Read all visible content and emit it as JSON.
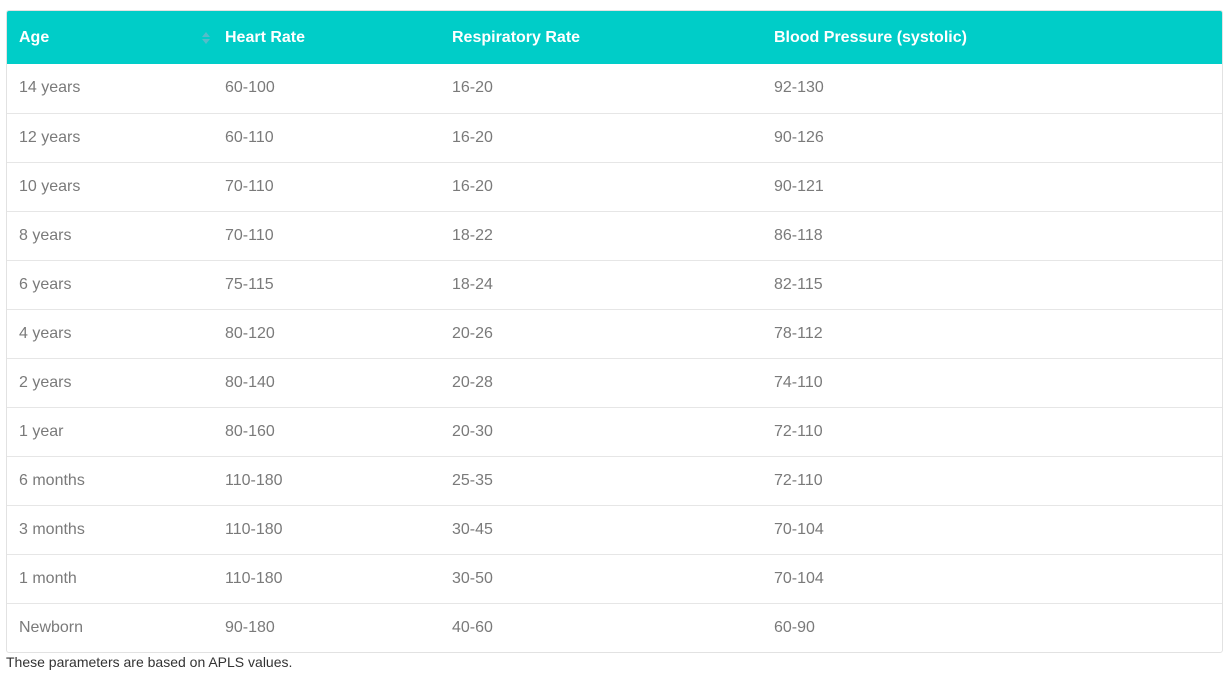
{
  "colors": {
    "header_bg": "#00cdc8",
    "header_text": "#ffffff",
    "cell_text": "#7a7a7a",
    "row_border": "#e6e6e6"
  },
  "table": {
    "headers": {
      "age": "Age",
      "heart_rate": "Heart Rate",
      "respiratory_rate": "Respiratory Rate",
      "blood_pressure": "Blood Pressure (systolic)"
    },
    "sort_icon": "sort-up-down-icon",
    "rows": [
      {
        "age": "14 years",
        "heart_rate": "60-100",
        "respiratory_rate": "16-20",
        "blood_pressure": "92-130"
      },
      {
        "age": "12 years",
        "heart_rate": "60-110",
        "respiratory_rate": "16-20",
        "blood_pressure": "90-126"
      },
      {
        "age": "10 years",
        "heart_rate": "70-110",
        "respiratory_rate": "16-20",
        "blood_pressure": "90-121"
      },
      {
        "age": "8 years",
        "heart_rate": "70-110",
        "respiratory_rate": "18-22",
        "blood_pressure": "86-118"
      },
      {
        "age": "6 years",
        "heart_rate": "75-115",
        "respiratory_rate": "18-24",
        "blood_pressure": "82-115"
      },
      {
        "age": "4 years",
        "heart_rate": "80-120",
        "respiratory_rate": "20-26",
        "blood_pressure": "78-112"
      },
      {
        "age": "2 years",
        "heart_rate": "80-140",
        "respiratory_rate": "20-28",
        "blood_pressure": "74-110"
      },
      {
        "age": "1 year",
        "heart_rate": "80-160",
        "respiratory_rate": "20-30",
        "blood_pressure": "72-110"
      },
      {
        "age": "6 months",
        "heart_rate": "110-180",
        "respiratory_rate": "25-35",
        "blood_pressure": "72-110"
      },
      {
        "age": "3 months",
        "heart_rate": "110-180",
        "respiratory_rate": "30-45",
        "blood_pressure": "70-104"
      },
      {
        "age": "1 month",
        "heart_rate": "110-180",
        "respiratory_rate": "30-50",
        "blood_pressure": "70-104"
      },
      {
        "age": "Newborn",
        "heart_rate": "90-180",
        "respiratory_rate": "40-60",
        "blood_pressure": "60-90"
      }
    ]
  },
  "footnote": "These parameters are based on APLS values."
}
